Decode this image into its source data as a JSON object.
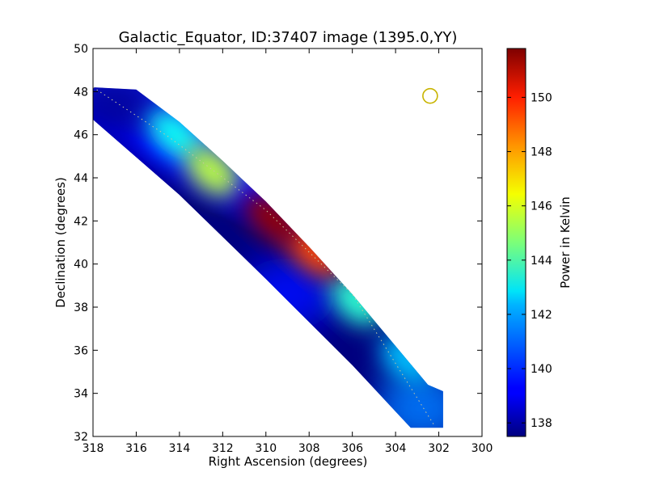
{
  "chart_data": {
    "type": "heatmap",
    "title": "Galactic_Equator, ID:37407 image (1395.0,YY)",
    "xlabel": "Right Ascension (degrees)",
    "ylabel": "Declination (degrees)",
    "colorbar_label": "Power in Kelvin",
    "xlim": [
      318,
      300
    ],
    "ylim": [
      32,
      50
    ],
    "x_ticks": [
      318,
      316,
      314,
      312,
      310,
      308,
      306,
      304,
      302,
      300
    ],
    "y_ticks": [
      32,
      34,
      36,
      38,
      40,
      42,
      44,
      46,
      48,
      50
    ],
    "colorbar_range": [
      137.5,
      151.8
    ],
    "colorbar_ticks": [
      138,
      140,
      142,
      144,
      146,
      148,
      150
    ],
    "colormap": "jet",
    "grid": false,
    "strip": {
      "upper_edge": [
        [
          318.0,
          48.2
        ],
        [
          316.0,
          48.1
        ],
        [
          314.0,
          46.6
        ],
        [
          312.0,
          44.8
        ],
        [
          310.0,
          42.9
        ],
        [
          308.0,
          40.8
        ],
        [
          306.0,
          38.6
        ],
        [
          304.0,
          36.2
        ],
        [
          302.5,
          34.4
        ],
        [
          301.8,
          34.1
        ],
        [
          301.8,
          32.4
        ]
      ],
      "lower_edge": [
        [
          303.3,
          32.4
        ],
        [
          306.0,
          35.3
        ],
        [
          310.0,
          39.3
        ],
        [
          314.0,
          43.2
        ],
        [
          318.0,
          46.7
        ]
      ]
    },
    "centerline": [
      [
        318.0,
        48.2
      ],
      [
        314.5,
        45.9
      ],
      [
        310.0,
        42.5
      ],
      [
        306.0,
        38.6
      ],
      [
        302.2,
        32.5
      ]
    ],
    "beam_marker": {
      "ra": 302.4,
      "dec": 47.8,
      "color": "#c8b400"
    },
    "hotspots": [
      {
        "ra": 309.7,
        "dec": 42.1,
        "value": 151.5
      },
      {
        "ra": 307.8,
        "dec": 40.6,
        "value": 149.0
      },
      {
        "ra": 312.5,
        "dec": 44.3,
        "value": 145.5
      },
      {
        "ra": 314.2,
        "dec": 46.0,
        "value": 143.0
      },
      {
        "ra": 305.8,
        "dec": 38.3,
        "value": 143.5
      },
      {
        "ra": 303.5,
        "dec": 35.6,
        "value": 142.0
      }
    ],
    "background_values": [
      {
        "region": "upper-left",
        "value": 137.8
      },
      {
        "region": "lower-edge",
        "value": 139.5
      },
      {
        "region": "bottom-right",
        "value": 141.0
      }
    ]
  }
}
